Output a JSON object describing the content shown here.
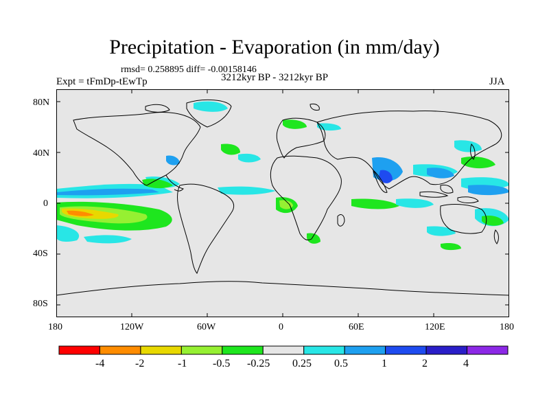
{
  "title": "Precipitation - Evaporation (in mm/day)",
  "stats": "rmsd= 0.258895 diff= -0.00158146",
  "experiment": "Expt = tFmDp-tEwTp",
  "period": "3212kyr BP - 3212kyr BP",
  "season": "JJA",
  "map": {
    "lat_labels": [
      "80N",
      "40N",
      "0",
      "40S",
      "80S"
    ],
    "lon_labels": [
      "180",
      "120W",
      "60W",
      "0",
      "60E",
      "120E",
      "180"
    ],
    "background_color": "#e6e6e6",
    "coastline_color": "#000000"
  },
  "colorbar": {
    "labels": [
      "-4",
      "-2",
      "-1",
      "-0.5",
      "-0.25",
      "0.25",
      "0.5",
      "1",
      "2",
      "4"
    ],
    "colors": [
      "#ff0000",
      "#ff8c00",
      "#e8d800",
      "#96f032",
      "#1ee61e",
      "#e6e6e6",
      "#28e6e6",
      "#1ea0f0",
      "#1e4bf0",
      "#2a1ec8",
      "#8c28e6"
    ]
  }
}
